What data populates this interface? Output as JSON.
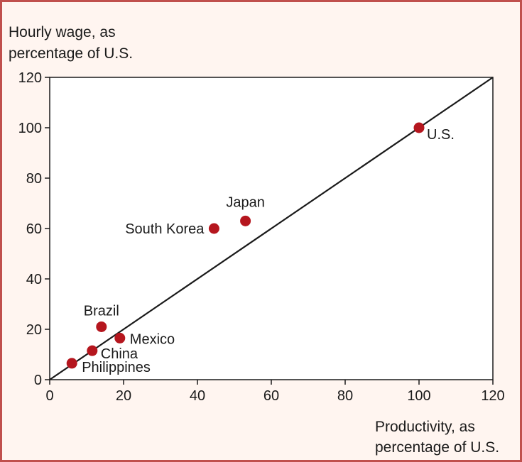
{
  "chart_data": {
    "type": "scatter",
    "title": "",
    "ylabel_lines": [
      "Hourly wage, as",
      "percentage of U.S."
    ],
    "xlabel_lines": [
      "Productivity, as",
      "percentage of U.S."
    ],
    "xlim": [
      0,
      120
    ],
    "ylim": [
      0,
      120
    ],
    "xticks": [
      0,
      20,
      40,
      60,
      80,
      100,
      120
    ],
    "yticks": [
      0,
      20,
      40,
      60,
      80,
      100,
      120
    ],
    "grid": false,
    "reference_line": {
      "from": [
        0,
        0
      ],
      "to": [
        120,
        120
      ]
    },
    "points": [
      {
        "label": "U.S.",
        "x": 100,
        "y": 100
      },
      {
        "label": "Japan",
        "x": 53,
        "y": 63
      },
      {
        "label": "South Korea",
        "x": 44.5,
        "y": 60
      },
      {
        "label": "Brazil",
        "x": 14,
        "y": 21
      },
      {
        "label": "Mexico",
        "x": 19,
        "y": 16.5
      },
      {
        "label": "China",
        "x": 11.5,
        "y": 11.5
      },
      {
        "label": "Philippines",
        "x": 6,
        "y": 6.5
      }
    ],
    "colors": {
      "point": "#b5161e",
      "line": "#1a1a1a",
      "frame_border": "#c0504d",
      "background": "#fff5f0"
    }
  }
}
